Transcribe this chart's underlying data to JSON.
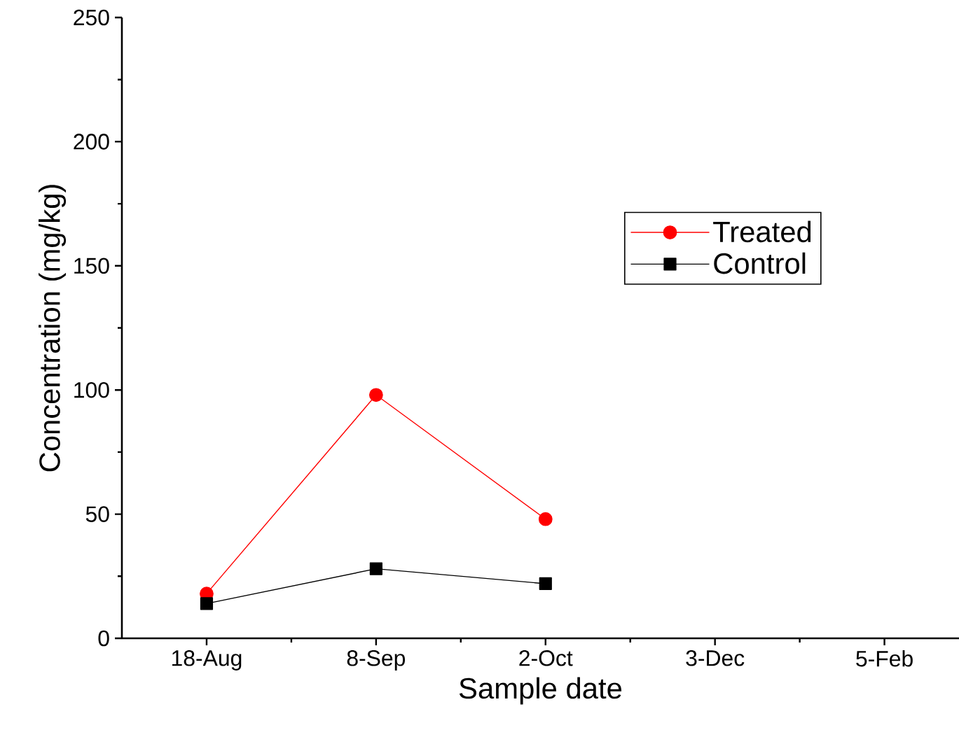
{
  "chart_data": {
    "type": "line",
    "xlabel": "Sample date",
    "ylabel": "Concentration (mg/kg)",
    "categories": [
      "18-Aug",
      "8-Sep",
      "2-Oct",
      "3-Dec",
      "5-Feb"
    ],
    "series": [
      {
        "name": "Treated",
        "color": "#ff0000",
        "marker": "circle",
        "values": [
          18,
          98,
          48,
          null,
          null
        ]
      },
      {
        "name": "Control",
        "color": "#000000",
        "marker": "square",
        "values": [
          14,
          28,
          22,
          null,
          null
        ]
      }
    ],
    "ylim": [
      0,
      250
    ],
    "yticks": [
      0,
      50,
      100,
      150,
      200,
      250
    ],
    "legend": "right",
    "line_style": "solid",
    "grid": false
  }
}
